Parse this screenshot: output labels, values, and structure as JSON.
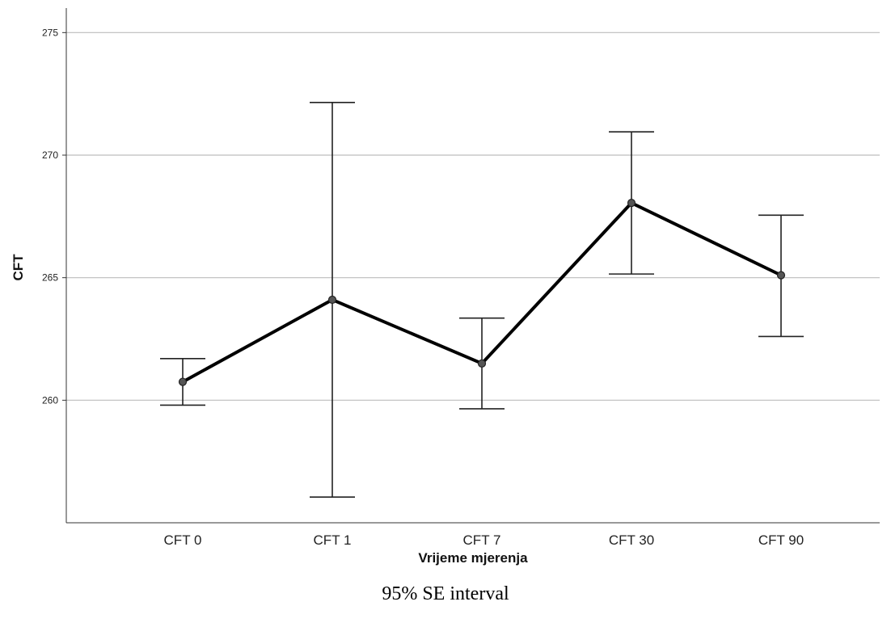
{
  "chart_data": {
    "type": "line",
    "categories": [
      "CFT 0",
      "CFT 1",
      "CFT 7",
      "CFT 30",
      "CFT 90"
    ],
    "series": [
      {
        "values": [
          260.75,
          264.1,
          261.5,
          268.05,
          265.1
        ],
        "error_low": [
          259.8,
          256.05,
          259.65,
          265.15,
          262.6
        ],
        "error_high": [
          261.7,
          272.15,
          263.35,
          270.95,
          267.55
        ]
      }
    ],
    "xlabel": "Vrijeme mjerenja",
    "ylabel": "CFT",
    "ylim": [
      255,
      276
    ],
    "yticks": [
      260,
      265,
      270,
      275
    ],
    "grid": true,
    "line_color": "#000000",
    "marker_color": "#555555",
    "gridline_color": "#bdbdbd"
  },
  "caption": "95% SE interval"
}
